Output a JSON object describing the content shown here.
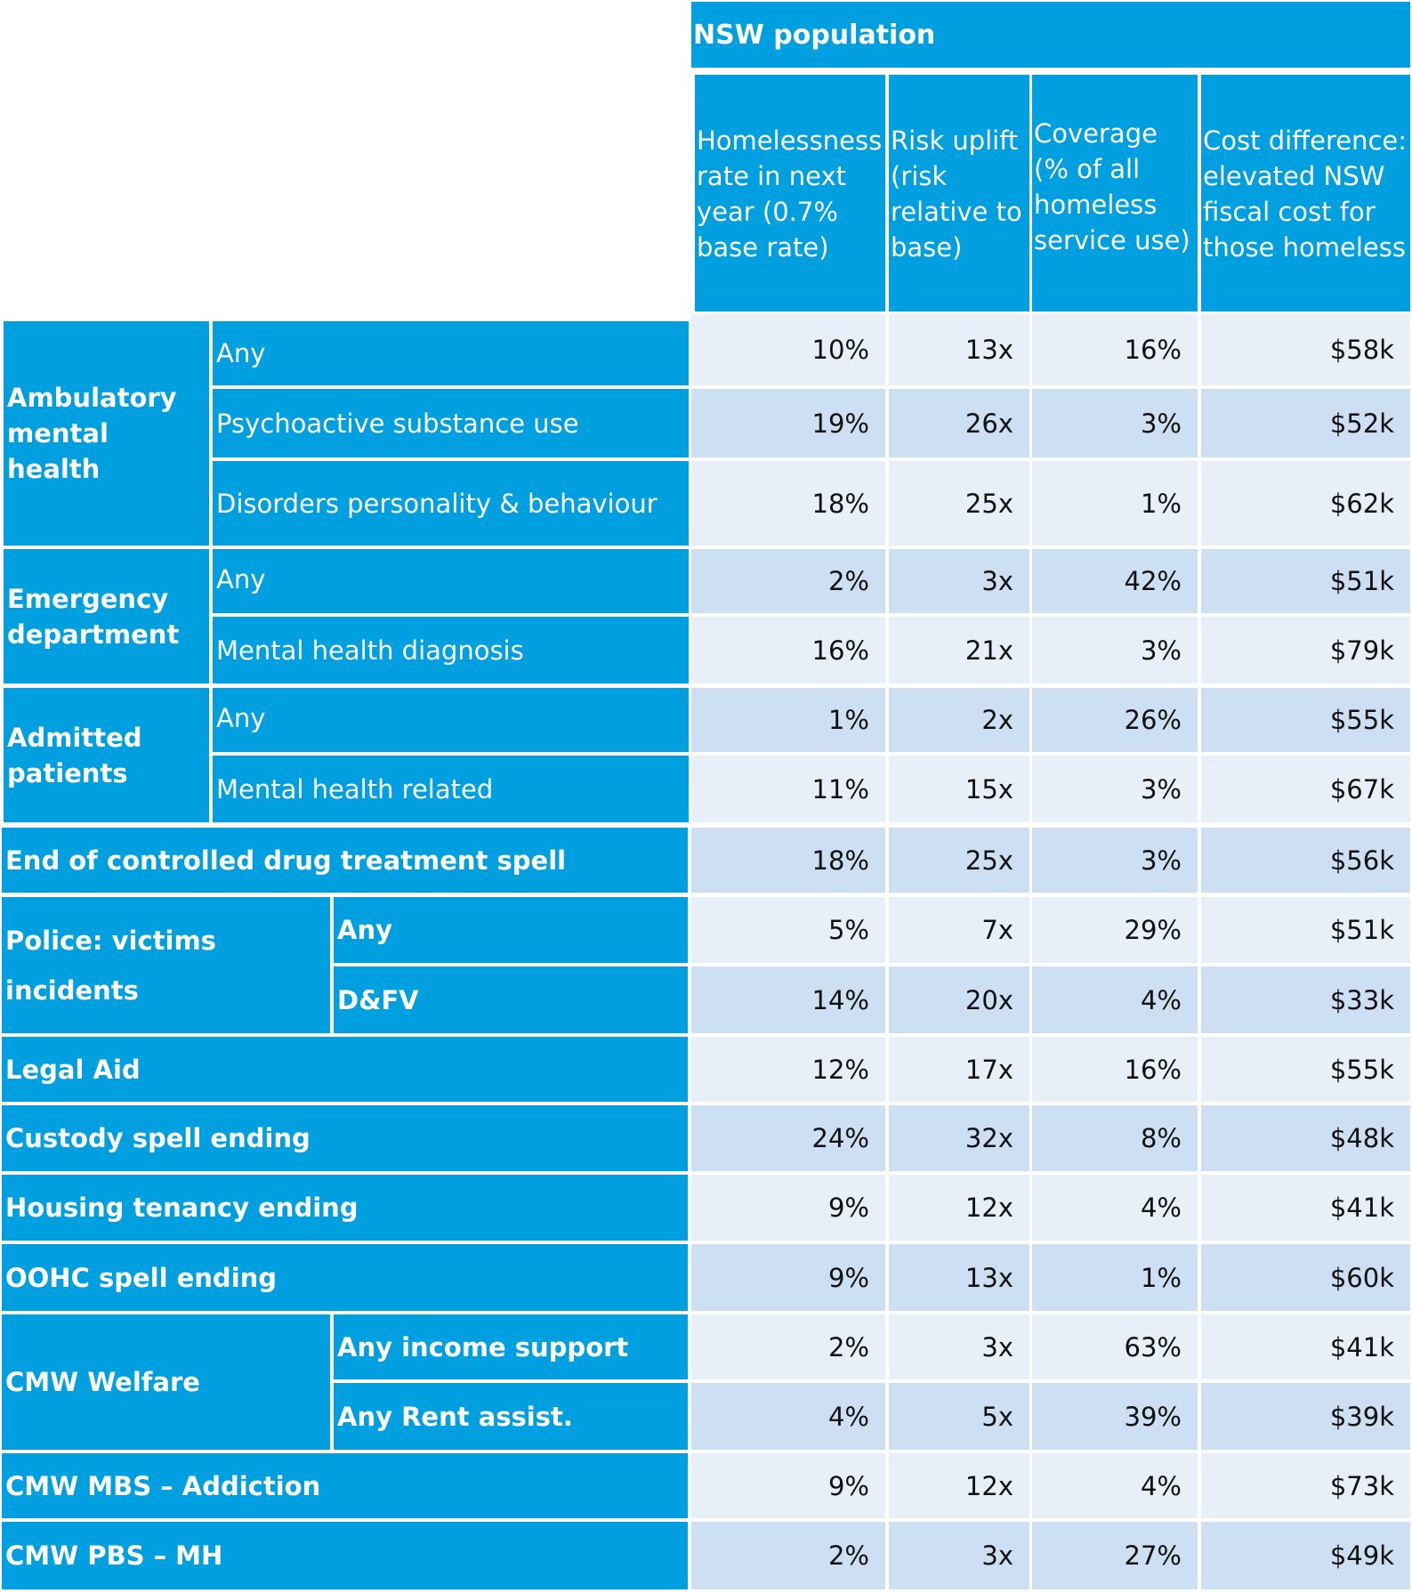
{
  "header": {
    "group": "NSW population",
    "columns": [
      "Homelessness rate in next year (0.7% base rate)",
      "Risk uplift (risk relative to base)",
      "Coverage\n(% of all homeless service use)",
      "Cost difference: elevated NSW fiscal cost for those homeless"
    ]
  },
  "groups": [
    {
      "label": "Ambulatory mental health"
    },
    {
      "label": "Emergency department"
    },
    {
      "label": "Admitted patients"
    },
    {
      "label": "Police: victims incidents"
    },
    {
      "label": "CMW Welfare"
    }
  ],
  "rows": [
    {
      "label": "Any",
      "values": [
        "10%",
        "13x",
        "16%",
        "$58k"
      ]
    },
    {
      "label": "Psychoactive substance use",
      "values": [
        "19%",
        "26x",
        "3%",
        "$52k"
      ]
    },
    {
      "label": "Disorders personality & behaviour",
      "values": [
        "18%",
        "25x",
        "1%",
        "$62k"
      ]
    },
    {
      "label": "Any",
      "values": [
        "2%",
        "3x",
        "42%",
        "$51k"
      ]
    },
    {
      "label": "Mental health diagnosis",
      "values": [
        "16%",
        "21x",
        "3%",
        "$79k"
      ]
    },
    {
      "label": "Any",
      "values": [
        "1%",
        "2x",
        "26%",
        "$55k"
      ]
    },
    {
      "label": "Mental health related",
      "values": [
        "11%",
        "15x",
        "3%",
        "$67k"
      ]
    },
    {
      "label": "End of controlled drug treatment spell",
      "values": [
        "18%",
        "25x",
        "3%",
        "$56k"
      ]
    },
    {
      "label": "Any",
      "values": [
        "5%",
        "7x",
        "29%",
        "$51k"
      ]
    },
    {
      "label": "D&FV",
      "values": [
        "14%",
        "20x",
        "4%",
        "$33k"
      ]
    },
    {
      "label": "Legal Aid",
      "values": [
        "12%",
        "17x",
        "16%",
        "$55k"
      ]
    },
    {
      "label": "Custody spell ending",
      "values": [
        "24%",
        "32x",
        "8%",
        "$48k"
      ]
    },
    {
      "label": "Housing tenancy ending",
      "values": [
        "9%",
        "12x",
        "4%",
        "$41k"
      ]
    },
    {
      "label": "OOHC spell ending",
      "values": [
        "9%",
        "13x",
        "1%",
        "$60k"
      ]
    },
    {
      "label": "Any income support",
      "values": [
        "2%",
        "3x",
        "63%",
        "$41k"
      ]
    },
    {
      "label": "Any Rent assist.",
      "values": [
        "4%",
        "5x",
        "39%",
        "$39k"
      ]
    },
    {
      "label": "CMW MBS – Addiction",
      "values": [
        "9%",
        "12x",
        "4%",
        "$73k"
      ]
    },
    {
      "label": "CMW PBS – MH",
      "values": [
        "2%",
        "3x",
        "27%",
        "$49k"
      ]
    }
  ],
  "colors": {
    "header_blue": "#009fe0",
    "row_light": "#e7eff9",
    "row_dark": "#cddff2"
  }
}
